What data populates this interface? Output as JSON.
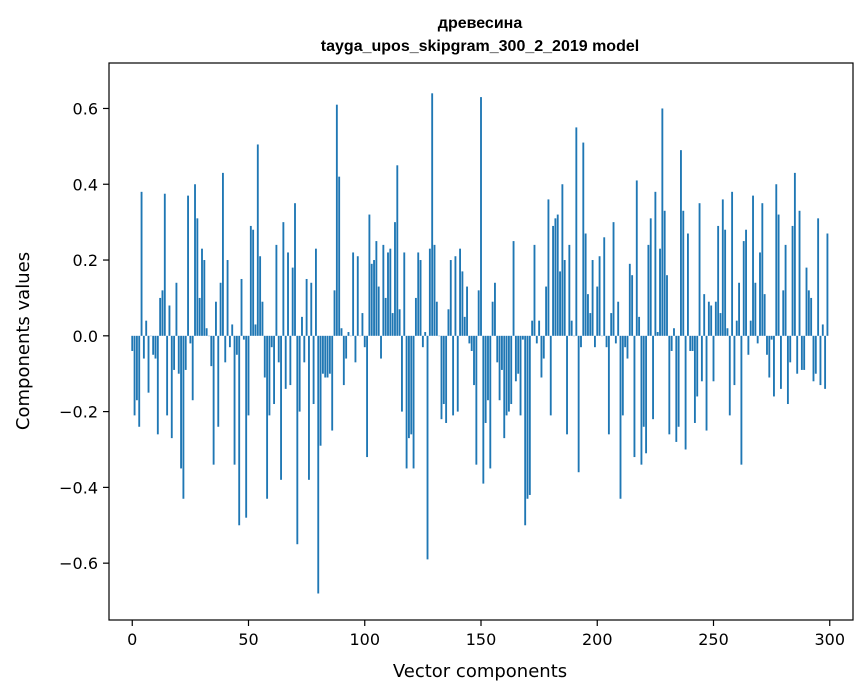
{
  "chart_data": {
    "type": "bar",
    "title": "древесина",
    "subtitle": "tayga_upos_skipgram_300_2_2019 model",
    "xlabel": "Vector components",
    "ylabel": "Components values",
    "xlim": [
      -10,
      310
    ],
    "ylim": [
      -0.75,
      0.72
    ],
    "xticks": [
      0,
      50,
      100,
      150,
      200,
      250,
      300
    ],
    "yticks": [
      -0.6,
      -0.4,
      -0.2,
      0.0,
      0.2,
      0.4,
      0.6
    ],
    "ytick_labels": [
      "−0.6",
      "−0.4",
      "−0.2",
      "0.0",
      "0.2",
      "0.4",
      "0.6"
    ],
    "grid": false,
    "bar_color": "#1f77b4",
    "x_start": 0,
    "values": [
      -0.04,
      -0.21,
      -0.17,
      -0.24,
      0.38,
      -0.06,
      0.04,
      -0.15,
      0.0,
      -0.05,
      -0.06,
      -0.26,
      0.1,
      0.12,
      0.375,
      -0.21,
      0.08,
      -0.27,
      -0.09,
      0.14,
      -0.1,
      -0.35,
      -0.43,
      -0.09,
      0.37,
      -0.02,
      -0.17,
      0.4,
      0.31,
      0.1,
      0.23,
      0.2,
      0.02,
      0.0,
      -0.08,
      -0.34,
      0.09,
      -0.24,
      0.14,
      0.43,
      -0.07,
      0.2,
      -0.03,
      0.03,
      -0.34,
      -0.05,
      -0.5,
      0.15,
      -0.01,
      -0.48,
      -0.21,
      0.29,
      0.28,
      0.03,
      0.505,
      0.21,
      0.09,
      -0.11,
      -0.43,
      -0.21,
      -0.03,
      -0.18,
      0.24,
      -0.07,
      -0.38,
      0.3,
      -0.14,
      0.22,
      -0.13,
      0.18,
      0.35,
      -0.55,
      -0.2,
      0.05,
      -0.07,
      0.15,
      -0.38,
      0.14,
      -0.18,
      0.23,
      -0.68,
      -0.29,
      -0.1,
      -0.11,
      -0.11,
      -0.1,
      -0.25,
      0.12,
      0.61,
      0.42,
      0.02,
      -0.13,
      -0.06,
      0.01,
      0.0,
      0.22,
      -0.07,
      0.21,
      0.0,
      0.06,
      -0.03,
      -0.32,
      0.32,
      0.19,
      0.2,
      0.25,
      0.13,
      -0.06,
      0.24,
      0.1,
      0.22,
      0.23,
      0.06,
      0.3,
      0.45,
      0.07,
      -0.2,
      0.22,
      -0.35,
      -0.27,
      -0.26,
      -0.35,
      0.1,
      0.22,
      0.2,
      -0.03,
      0.01,
      -0.59,
      0.23,
      0.64,
      0.24,
      0.09,
      0.0,
      -0.22,
      -0.18,
      -0.23,
      0.07,
      0.2,
      -0.21,
      0.21,
      -0.2,
      0.23,
      0.17,
      0.05,
      0.13,
      -0.02,
      -0.04,
      -0.13,
      -0.34,
      0.12,
      0.63,
      -0.39,
      -0.23,
      -0.17,
      -0.35,
      0.09,
      0.14,
      -0.07,
      -0.17,
      -0.09,
      -0.27,
      -0.21,
      -0.2,
      -0.18,
      0.25,
      -0.12,
      -0.1,
      -0.21,
      -0.01,
      -0.5,
      -0.43,
      -0.42,
      0.04,
      0.24,
      -0.02,
      0.04,
      -0.11,
      -0.06,
      0.13,
      0.36,
      -0.21,
      0.29,
      0.31,
      0.32,
      0.17,
      0.4,
      0.2,
      -0.26,
      0.24,
      0.04,
      0.0,
      0.55,
      -0.36,
      -0.03,
      0.51,
      0.27,
      0.11,
      0.06,
      0.2,
      -0.03,
      0.13,
      0.21,
      0.0,
      0.26,
      -0.03,
      -0.26,
      0.06,
      0.3,
      -0.02,
      0.09,
      -0.43,
      -0.21,
      -0.03,
      -0.06,
      0.19,
      0.16,
      -0.32,
      0.41,
      0.05,
      -0.34,
      -0.24,
      -0.31,
      0.24,
      0.31,
      -0.22,
      0.38,
      0.01,
      0.23,
      0.6,
      0.33,
      0.16,
      -0.26,
      -0.04,
      0.02,
      -0.28,
      -0.24,
      0.49,
      0.33,
      -0.3,
      0.27,
      -0.04,
      -0.04,
      -0.23,
      -0.16,
      0.35,
      -0.12,
      0.11,
      -0.25,
      0.09,
      0.08,
      -0.12,
      0.09,
      0.29,
      0.06,
      0.36,
      0.28,
      0.02,
      -0.21,
      0.38,
      -0.13,
      0.04,
      0.14,
      -0.34,
      0.25,
      0.28,
      -0.05,
      0.04,
      0.37,
      0.14,
      -0.02,
      0.22,
      0.35,
      0.11,
      -0.05,
      -0.11,
      -0.01,
      -0.16,
      0.4,
      0.32,
      -0.14,
      0.12,
      0.24,
      -0.18,
      -0.07,
      0.29,
      0.43,
      -0.1,
      0.33,
      -0.09,
      -0.09,
      0.18,
      0.12,
      0.1,
      -0.12,
      -0.1,
      0.31,
      -0.13,
      0.03,
      -0.14,
      0.27
    ]
  }
}
